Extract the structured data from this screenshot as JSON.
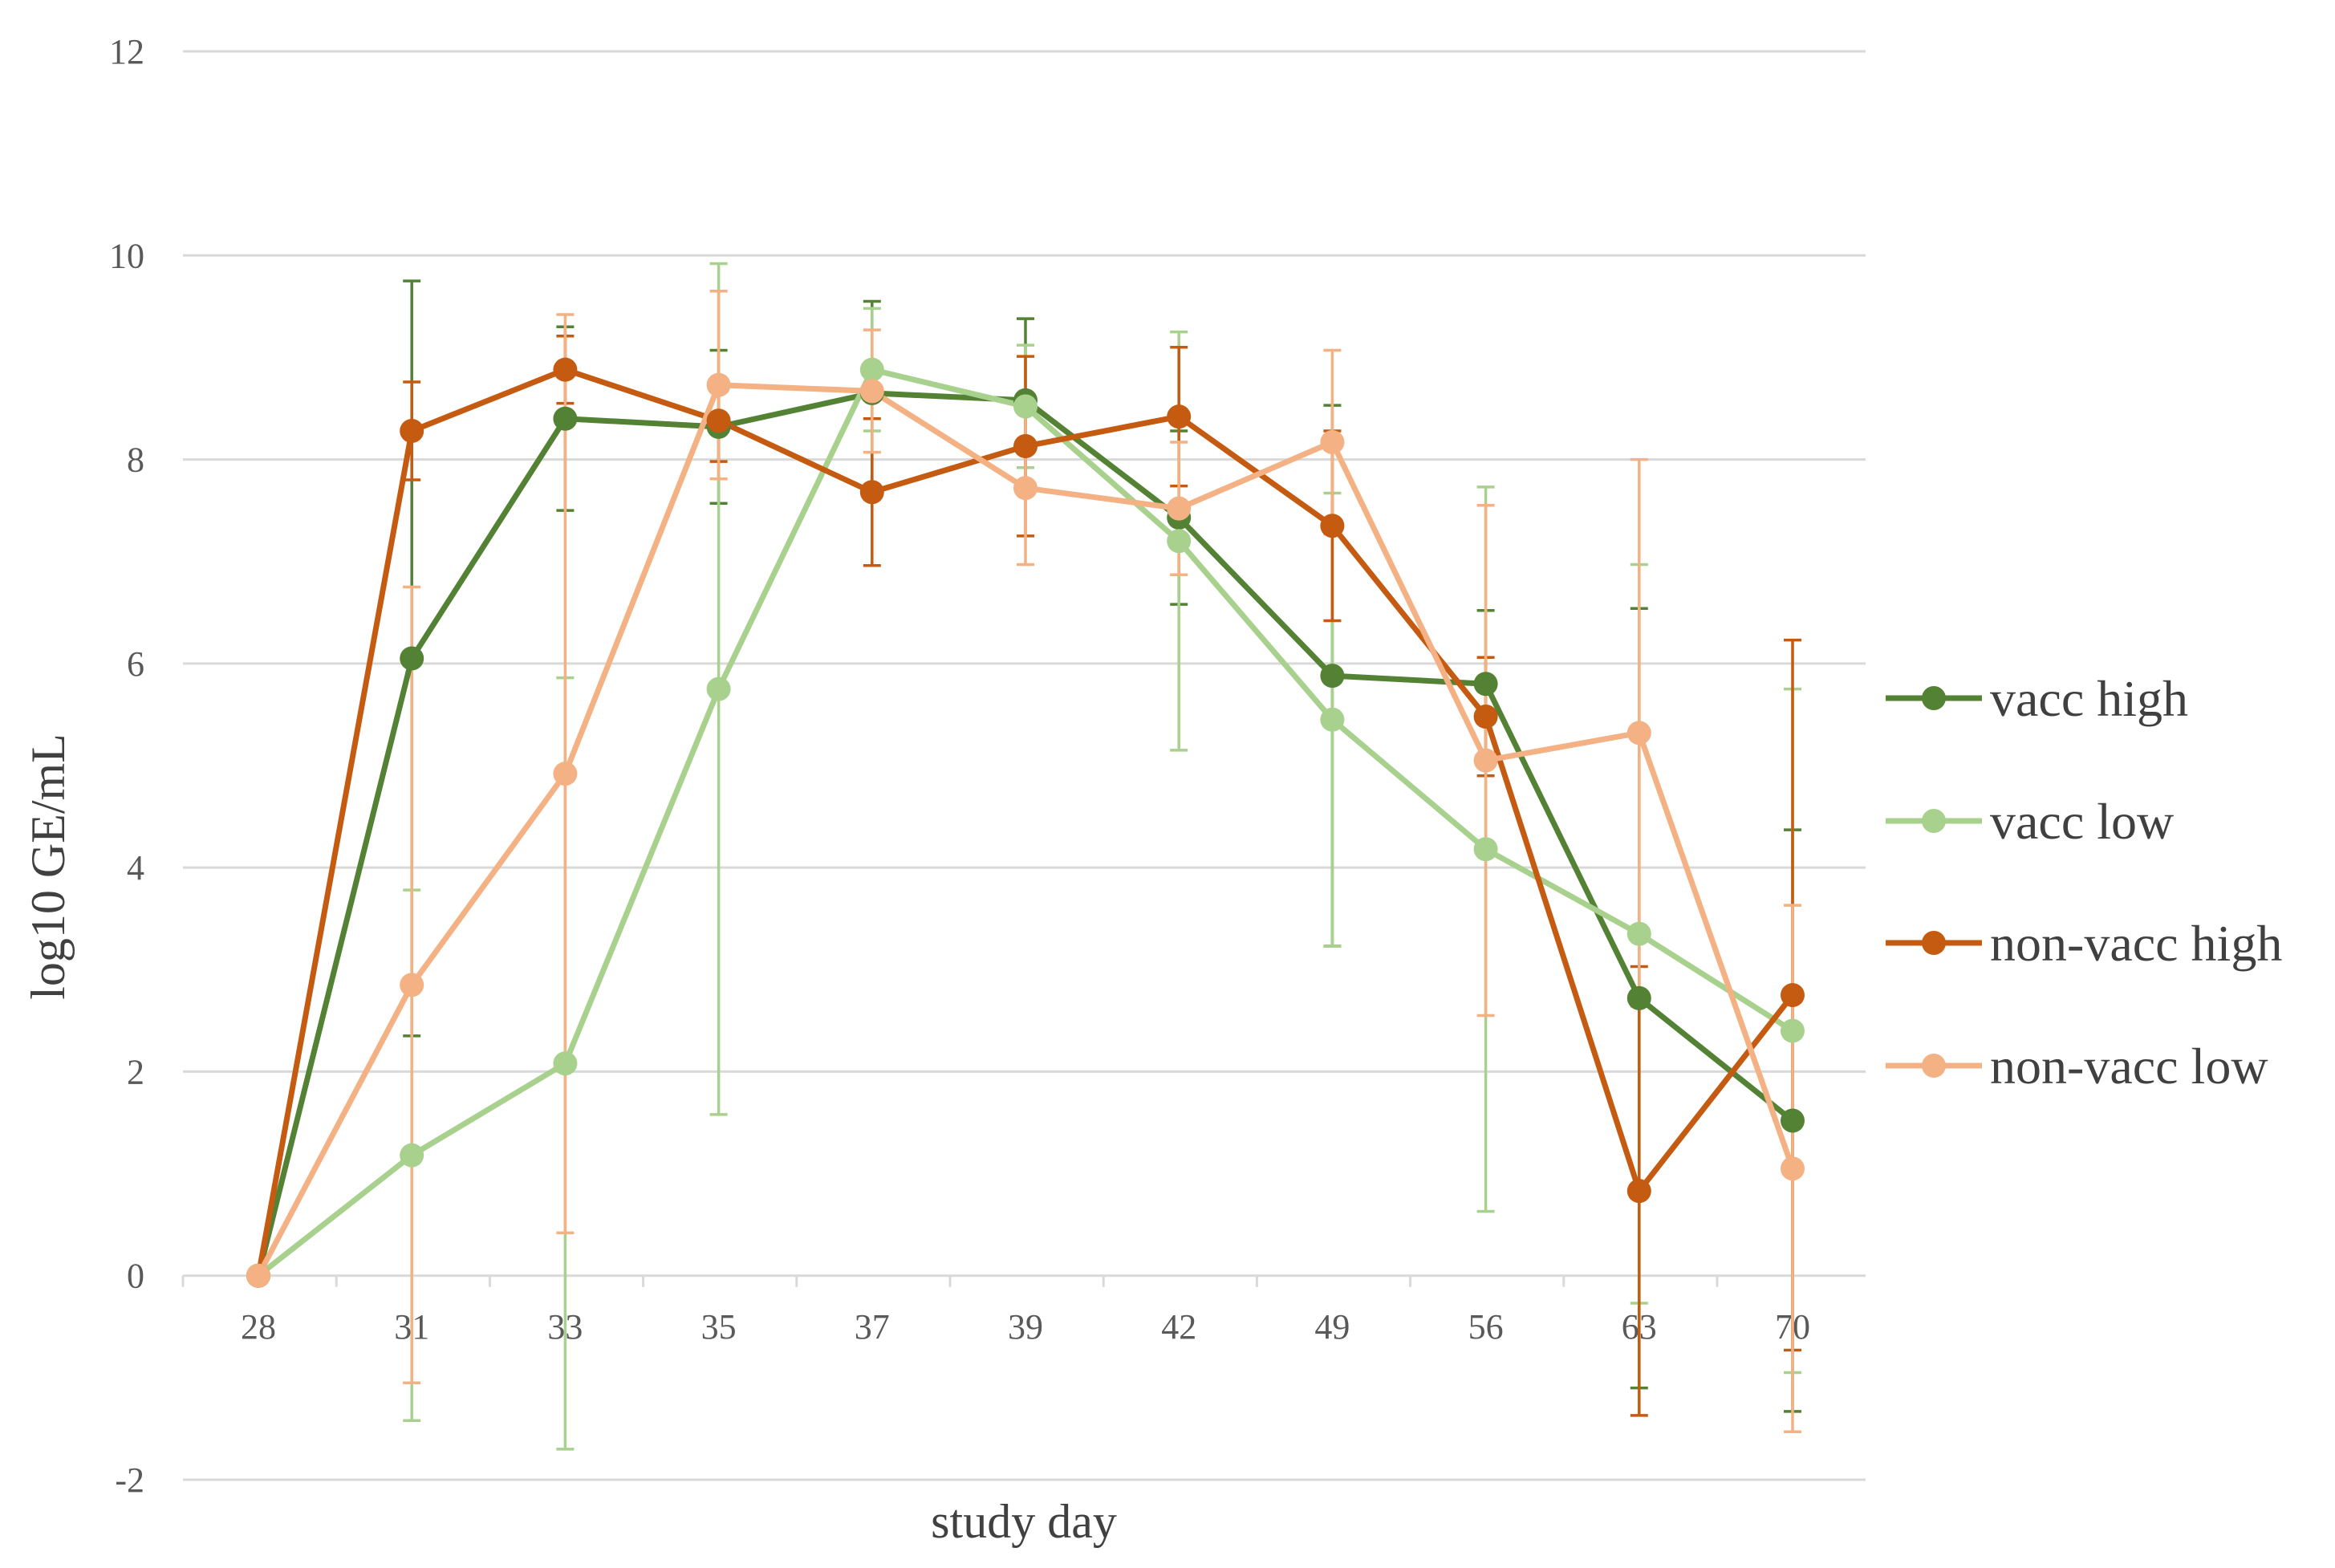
{
  "chart_data": {
    "type": "line",
    "title": "",
    "xlabel": "study day",
    "ylabel": "log10 GE/mL",
    "ylim": [
      -2,
      12
    ],
    "yticks": [
      -2,
      0,
      2,
      4,
      6,
      8,
      10,
      12
    ],
    "ytick_labels": [
      "-2",
      "0",
      "2",
      "4",
      "6",
      "8",
      "10",
      "12"
    ],
    "categories": [
      "28",
      "31",
      "33",
      "35",
      "37",
      "39",
      "42",
      "49",
      "56",
      "63",
      "70"
    ],
    "grid": true,
    "legend_position": "right",
    "series": [
      {
        "name": "vacc high",
        "color": "#548235",
        "values": [
          0,
          6.05,
          8.4,
          8.32,
          8.65,
          8.58,
          7.43,
          5.88,
          5.8,
          2.72,
          1.52
        ],
        "error": [
          0,
          3.7,
          0.9,
          0.75,
          0.9,
          0.8,
          0.85,
          2.65,
          0.72,
          3.82,
          2.85
        ]
      },
      {
        "name": "vacc low",
        "color": "#A9D18E",
        "values": [
          0,
          1.18,
          2.08,
          5.75,
          8.88,
          8.52,
          7.2,
          5.45,
          4.18,
          3.35,
          2.4
        ],
        "error": [
          0,
          2.6,
          3.78,
          4.17,
          0.6,
          0.6,
          2.05,
          2.22,
          3.55,
          3.62,
          3.35
        ]
      },
      {
        "name": "non-vacc high",
        "color": "#C55A11",
        "values": [
          0,
          8.28,
          8.88,
          8.38,
          7.68,
          8.13,
          8.42,
          7.35,
          5.48,
          0.83,
          2.75
        ],
        "error": [
          0,
          0.48,
          0.33,
          0.4,
          0.72,
          0.88,
          0.68,
          0.93,
          0.58,
          2.2,
          3.48
        ]
      },
      {
        "name": "non-vacc low",
        "color": "#F4B183",
        "values": [
          0,
          2.85,
          4.92,
          8.73,
          8.67,
          7.72,
          7.52,
          8.17,
          5.05,
          5.32,
          1.05
        ],
        "error": [
          0,
          3.9,
          4.5,
          0.92,
          0.6,
          0.75,
          0.65,
          0.9,
          2.5,
          2.68,
          2.58
        ]
      }
    ]
  }
}
